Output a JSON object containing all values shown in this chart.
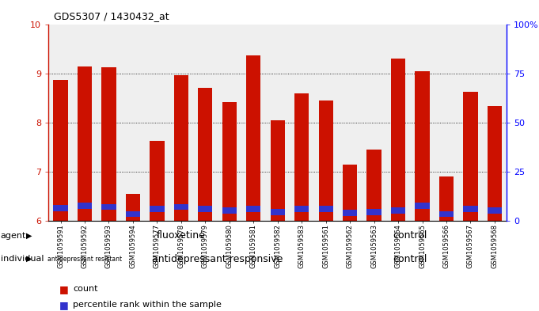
{
  "title": "GDS5307 / 1430432_at",
  "samples": [
    "GSM1059591",
    "GSM1059592",
    "GSM1059593",
    "GSM1059594",
    "GSM1059577",
    "GSM1059578",
    "GSM1059579",
    "GSM1059580",
    "GSM1059581",
    "GSM1059582",
    "GSM1059583",
    "GSM1059561",
    "GSM1059562",
    "GSM1059563",
    "GSM1059564",
    "GSM1059565",
    "GSM1059566",
    "GSM1059567",
    "GSM1059568"
  ],
  "red_values": [
    8.88,
    9.15,
    9.13,
    6.55,
    7.63,
    8.97,
    8.72,
    8.42,
    9.37,
    8.05,
    8.6,
    8.45,
    7.15,
    7.45,
    9.32,
    9.05,
    6.9,
    8.63,
    8.35
  ],
  "blue_values": [
    6.2,
    6.25,
    6.22,
    6.08,
    6.18,
    6.22,
    6.18,
    6.15,
    6.18,
    6.12,
    6.18,
    6.18,
    6.1,
    6.12,
    6.15,
    6.25,
    6.08,
    6.18,
    6.15
  ],
  "blue_bar_height": [
    0.12,
    0.12,
    0.12,
    0.12,
    0.12,
    0.12,
    0.12,
    0.12,
    0.12,
    0.12,
    0.12,
    0.12,
    0.12,
    0.12,
    0.12,
    0.12,
    0.12,
    0.12,
    0.12
  ],
  "ymin": 6.0,
  "ymax": 10.0,
  "yticks": [
    6,
    7,
    8,
    9,
    10
  ],
  "right_yticks": [
    0,
    25,
    50,
    75,
    100
  ],
  "right_yticklabels": [
    "0",
    "25",
    "50",
    "75",
    "100%"
  ],
  "bar_color_red": "#CC1100",
  "bar_color_blue": "#3333CC",
  "bar_width": 0.6,
  "n_fluoxetine": 11,
  "n_resistant": 3,
  "n_responsive": 8,
  "n_control": 8,
  "agent_label_fluoxetine": "fluoxetine",
  "agent_label_control": "control",
  "individual_label_resistant": "antidepressant resistant",
  "individual_label_responsive": "antidepressant responsive",
  "individual_label_control": "control",
  "color_light_green": "#CCFFCC",
  "color_green": "#55DD55",
  "color_pink": "#FF99FF",
  "color_col_bg": "#E0E0E0",
  "legend_count_color": "#CC1100",
  "legend_percentile_color": "#3333CC"
}
